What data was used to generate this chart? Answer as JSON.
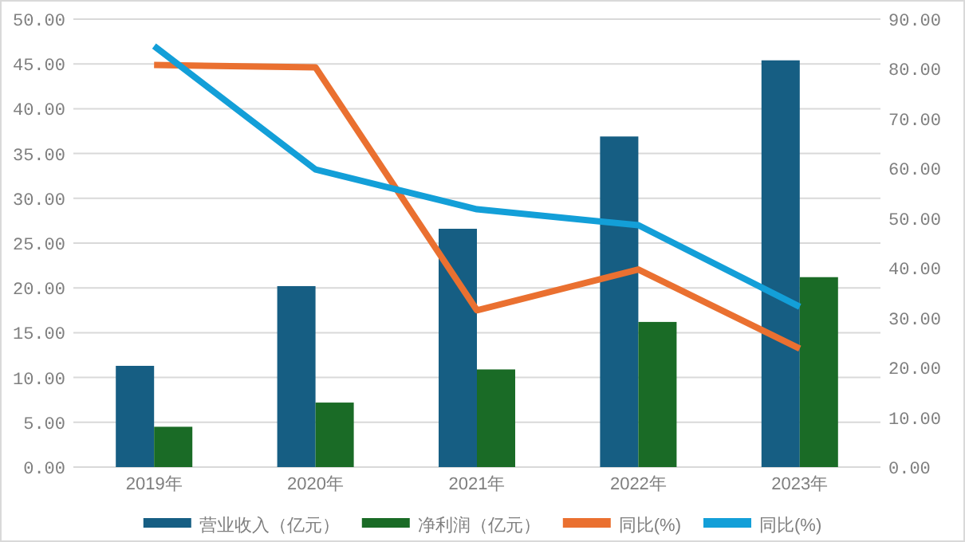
{
  "chart_data": {
    "type": "bar",
    "categories": [
      "2019年",
      "2020年",
      "2021年",
      "2022年",
      "2023年"
    ],
    "series": [
      {
        "name": "营业收入（亿元）",
        "color": "#165e83",
        "values": [
          11.3,
          20.2,
          26.6,
          36.9,
          45.4
        ]
      },
      {
        "name": "净利润（亿元）",
        "color": "#1a6b26",
        "values": [
          4.5,
          7.2,
          10.9,
          16.2,
          21.2
        ]
      },
      {
        "name": "同比(%)",
        "type": "line",
        "axis": "y2",
        "color": "#ea7030",
        "values": [
          80.8,
          80.3,
          31.5,
          39.7,
          23.8
        ]
      },
      {
        "name": "同比(%)",
        "type": "line",
        "axis": "y2",
        "color": "#139fd8",
        "values": [
          84.6,
          59.8,
          51.8,
          48.6,
          32.2
        ]
      }
    ],
    "ylim": [
      0,
      50
    ],
    "yticks": [
      {
        "value": 0,
        "label": "0.00"
      },
      {
        "value": 5,
        "label": "5.00"
      },
      {
        "value": 10,
        "label": "10.00"
      },
      {
        "value": 15,
        "label": "15.00"
      },
      {
        "value": 20,
        "label": "20.00"
      },
      {
        "value": 25,
        "label": "25.00"
      },
      {
        "value": 30,
        "label": "30.00"
      },
      {
        "value": 35,
        "label": "35.00"
      },
      {
        "value": 40,
        "label": "40.00"
      },
      {
        "value": 45,
        "label": "45.00"
      },
      {
        "value": 50,
        "label": "50.00"
      }
    ],
    "y2lim": [
      0,
      90
    ],
    "y2ticks": [
      {
        "value": 0,
        "label": "0.00"
      },
      {
        "value": 10,
        "label": "10.00"
      },
      {
        "value": 20,
        "label": "20.00"
      },
      {
        "value": 30,
        "label": "30.00"
      },
      {
        "value": 40,
        "label": "40.00"
      },
      {
        "value": 50,
        "label": "50.00"
      },
      {
        "value": 60,
        "label": "60.00"
      },
      {
        "value": 70,
        "label": "70.00"
      },
      {
        "value": 80,
        "label": "80.00"
      },
      {
        "value": 90,
        "label": "90.00"
      }
    ],
    "grid": "y",
    "legend": "bottom",
    "line_style": "solid",
    "marker": "none"
  }
}
